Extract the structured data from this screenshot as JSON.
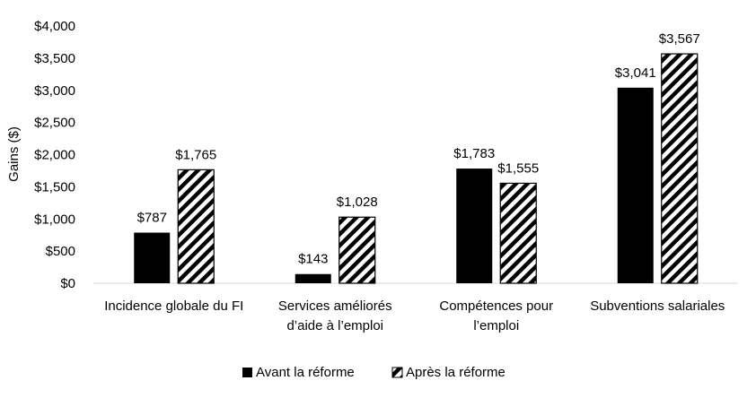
{
  "chart_data": {
    "type": "bar",
    "title": "",
    "ylabel": "Gains ($)",
    "xlabel": "",
    "ylim": [
      0,
      4000
    ],
    "ytick_values": [
      0,
      500,
      1000,
      1500,
      2000,
      2500,
      3000,
      3500,
      4000
    ],
    "ytick_labels": [
      "$0",
      "$500",
      "$1,000",
      "$1,500",
      "$2,000",
      "$2,500",
      "$3,000",
      "$3,500",
      "$4,000"
    ],
    "grid": false,
    "legend_position": "bottom",
    "categories": [
      [
        "Incidence globale du FI"
      ],
      [
        "Services améliorés",
        "d’aide à l’emploi"
      ],
      [
        "Compétences pour",
        "l’emploi"
      ],
      [
        "Subventions salariales"
      ]
    ],
    "series": [
      {
        "name": "Avant la réforme",
        "fill": "solid",
        "color": "#000000",
        "values": [
          787,
          143,
          1783,
          3041
        ],
        "labels": [
          "$787",
          "$143",
          "$1,783",
          "$3,041"
        ]
      },
      {
        "name": "Après la réforme",
        "fill": "hatched",
        "color": "#000000",
        "values": [
          1765,
          1028,
          1555,
          3567
        ],
        "labels": [
          "$1,765",
          "$1,028",
          "$1,555",
          "$3,567"
        ]
      }
    ]
  }
}
